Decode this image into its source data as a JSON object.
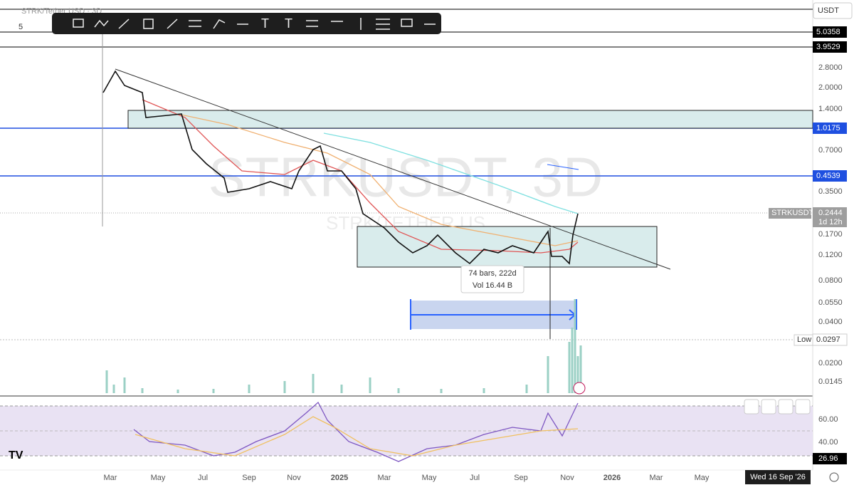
{
  "header": {
    "symbol_hint": "STRK/Tether USD · 3D",
    "currency": "USDT",
    "indicator_count": "5"
  },
  "watermark": {
    "title": "STRKUSDT, 3D",
    "subtitle": "STRK/TETHER US"
  },
  "price_axis": [
    "2.8000",
    "2.0000",
    "1.4000",
    "0.7000",
    "0.3500",
    "0.1700",
    "0.1200",
    "0.0800",
    "0.0550",
    "0.0400",
    "0.0200",
    "0.0145"
  ],
  "price_tags": {
    "top1": "5.0358",
    "top2": "3.9529",
    "blue1": "1.0175",
    "blue2": "0.4539",
    "symbol": "STRKUSDT",
    "last": "0.2444",
    "countdown": "1d 12h",
    "low_label": "Low",
    "low": "0.0297"
  },
  "measure": {
    "bars": "74 bars, 222d",
    "volume": "Vol 16.44 B"
  },
  "rsi_axis": [
    "60.00",
    "40.00"
  ],
  "rsi_value": "26.96",
  "time_axis": [
    "Mar",
    "May",
    "Jul",
    "Sep",
    "Nov",
    "2025",
    "Mar",
    "May",
    "Jul",
    "Sep",
    "Nov",
    "2026",
    "Mar",
    "May"
  ],
  "crosshair_date": "Wed 16 Sep '26"
}
